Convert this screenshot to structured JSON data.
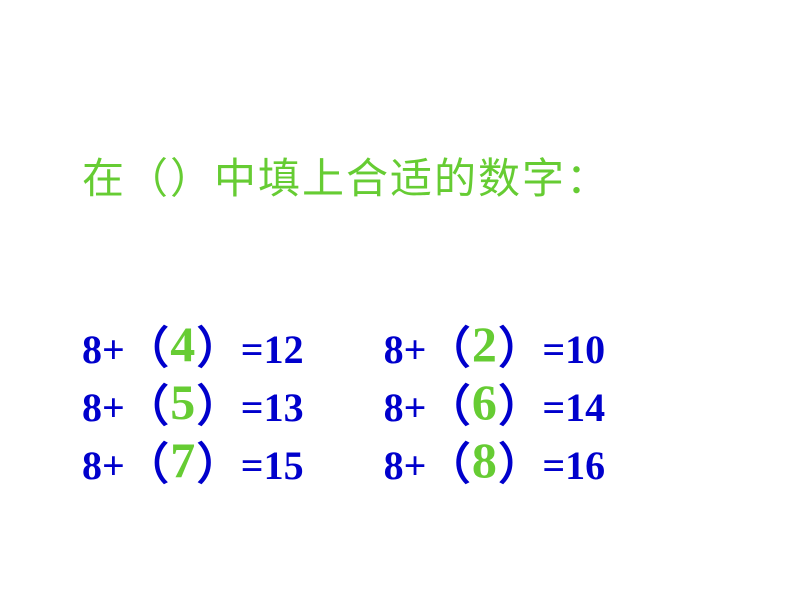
{
  "colors": {
    "title_green": "#66cc33",
    "equation_blue": "#0000cc",
    "answer_green": "#66cc33",
    "background": "#ffffff"
  },
  "fonts": {
    "title_size": 42,
    "equation_size": 40,
    "answer_size": 50,
    "bracket_size": 44
  },
  "title": "在（）中填上合适的数字：",
  "equations": {
    "left_column": [
      {
        "prefix": "8+",
        "lbracket": "（",
        "answer": "4",
        "rbracket": "）",
        "suffix": "=12"
      },
      {
        "prefix": "8+",
        "lbracket": "（",
        "answer": "5",
        "rbracket": "）",
        "suffix": "=13"
      },
      {
        "prefix": "8+",
        "lbracket": "（",
        "answer": "7",
        "rbracket": "）",
        "suffix": "=15"
      }
    ],
    "right_column": [
      {
        "prefix": "8+",
        "lbracket": "（",
        "answer": "2",
        "rbracket": "）",
        "suffix": "=10"
      },
      {
        "prefix": "8+",
        "lbracket": "（",
        "answer": "6",
        "rbracket": "）",
        "suffix": "=14"
      },
      {
        "prefix": "8+",
        "lbracket": "（",
        "answer": "8",
        "rbracket": "）",
        "suffix": "=16"
      }
    ]
  }
}
